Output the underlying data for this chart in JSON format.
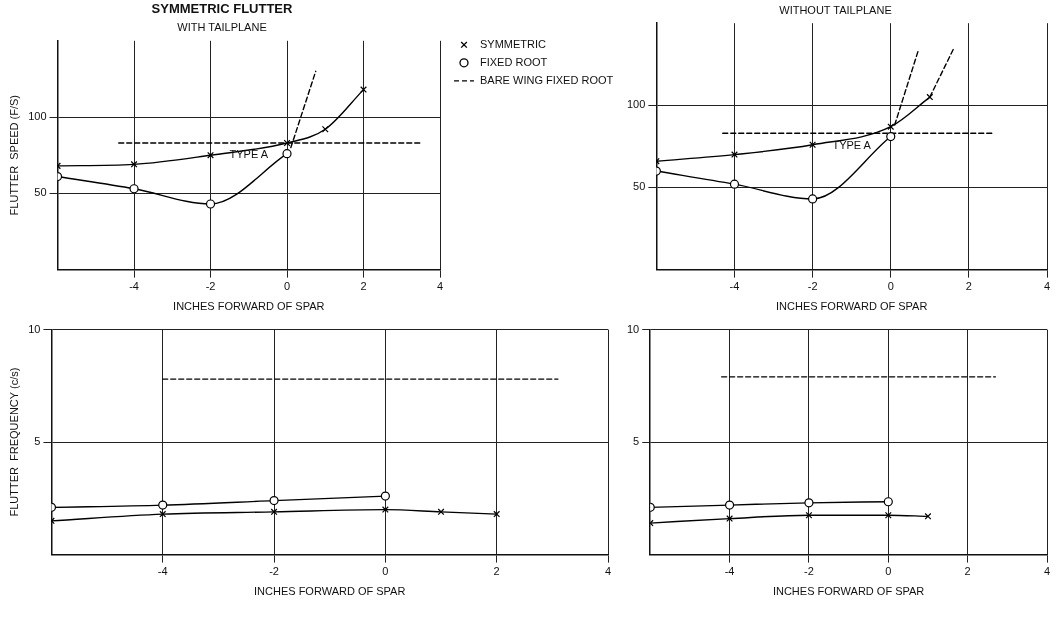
{
  "chart_data": [
    {
      "type": "line",
      "title": "SYMMETRIC FLUTTER",
      "subtitle": "WITH TAILPLANE",
      "xlabel": "INCHES FORWARD OF SPAR",
      "ylabel": "FLUTTER  SPEED (F/S)",
      "xlim": [
        -6,
        4
      ],
      "xticks": [
        -4,
        -2,
        0,
        2,
        4
      ],
      "ylim": [
        0,
        150
      ],
      "yticks": [
        50,
        100
      ],
      "grid": true,
      "legend": "right",
      "annotations": [
        "TYPE A"
      ],
      "series": [
        {
          "name": "SYMMETRIC",
          "color": "#000000",
          "marker": "cross",
          "line_style": "solid",
          "x": [
            -6,
            -4,
            -2,
            0,
            1,
            2
          ],
          "values": [
            68,
            69,
            75,
            83,
            92,
            118
          ]
        },
        {
          "name": "FIXED ROOT",
          "color": "#000000",
          "marker": "circle",
          "line_style": "solid",
          "x": [
            -6,
            -4,
            -2,
            0
          ],
          "values": [
            61,
            53,
            43,
            76
          ]
        },
        {
          "name": "BARE WING FIXED ROOT",
          "color": "#000000",
          "marker": "none",
          "line_style": "dashed",
          "x": [
            -4.4,
            3.5
          ],
          "values": [
            83,
            83
          ]
        },
        {
          "color": "#000000",
          "marker": "none",
          "line_style": "dashed",
          "x": [
            0.1,
            0.75
          ],
          "values": [
            80,
            130
          ]
        }
      ]
    },
    {
      "type": "line",
      "subtitle": "WITHOUT TAILPLANE",
      "xlabel": "INCHES FORWARD OF SPAR",
      "xlim": [
        -6,
        4
      ],
      "xticks": [
        -4,
        -2,
        0,
        2,
        4
      ],
      "ylim": [
        0,
        150
      ],
      "yticks": [
        50,
        100
      ],
      "grid": true,
      "annotations": [
        "TYPE A"
      ],
      "series": [
        {
          "color": "#000000",
          "marker": "cross",
          "line_style": "solid",
          "x": [
            -6,
            -4,
            -2,
            0,
            1
          ],
          "values": [
            66,
            70,
            76,
            87,
            105
          ]
        },
        {
          "color": "#000000",
          "marker": "circle",
          "line_style": "solid",
          "x": [
            -6,
            -4,
            -2,
            0
          ],
          "values": [
            60,
            52,
            43,
            81
          ]
        },
        {
          "color": "#000000",
          "marker": "none",
          "line_style": "dashed",
          "x": [
            -4.3,
            2.6
          ],
          "values": [
            83,
            83
          ]
        },
        {
          "color": "#000000",
          "marker": "none",
          "line_style": "dashed",
          "x": [
            1,
            1.6
          ],
          "values": [
            105,
            134
          ]
        },
        {
          "color": "#000000",
          "marker": "none",
          "line_style": "dashed",
          "x": [
            0.1,
            0.7
          ],
          "values": [
            88,
            133
          ]
        }
      ]
    },
    {
      "type": "line",
      "xlabel": "INCHES FORWARD OF SPAR",
      "ylabel": "FLUTTER  FREQUENCY (c/s)",
      "xlim": [
        -6,
        4
      ],
      "xticks": [
        -4,
        -2,
        0,
        2,
        4
      ],
      "ylim": [
        0,
        10
      ],
      "yticks": [
        5,
        10
      ],
      "grid": true,
      "series": [
        {
          "color": "#000000",
          "marker": "cross",
          "line_style": "solid",
          "x": [
            -6,
            -4,
            -2,
            0,
            1,
            2
          ],
          "values": [
            1.5,
            1.8,
            1.9,
            2.0,
            1.9,
            1.8
          ]
        },
        {
          "color": "#000000",
          "marker": "circle",
          "line_style": "solid",
          "x": [
            -6,
            -4,
            -2,
            0
          ],
          "values": [
            2.1,
            2.2,
            2.4,
            2.6
          ]
        },
        {
          "color": "#000000",
          "marker": "none",
          "line_style": "dashed",
          "x": [
            -4,
            3.1
          ],
          "values": [
            7.8,
            7.8
          ]
        }
      ]
    },
    {
      "type": "line",
      "xlabel": "INCHES FORWARD OF SPAR",
      "xlim": [
        -6,
        4
      ],
      "xticks": [
        -4,
        -2,
        0,
        2,
        4
      ],
      "ylim": [
        0,
        10
      ],
      "yticks": [
        5,
        10
      ],
      "grid": true,
      "series": [
        {
          "color": "#000000",
          "marker": "cross",
          "line_style": "solid",
          "x": [
            -6,
            -4,
            -2,
            0,
            1
          ],
          "values": [
            1.4,
            1.6,
            1.75,
            1.75,
            1.7
          ]
        },
        {
          "color": "#000000",
          "marker": "circle",
          "line_style": "solid",
          "x": [
            -6,
            -4,
            -2,
            0
          ],
          "values": [
            2.1,
            2.2,
            2.3,
            2.35
          ]
        },
        {
          "color": "#000000",
          "marker": "none",
          "line_style": "dashed",
          "x": [
            -4.2,
            2.7
          ],
          "values": [
            7.9,
            7.9
          ]
        }
      ]
    }
  ]
}
